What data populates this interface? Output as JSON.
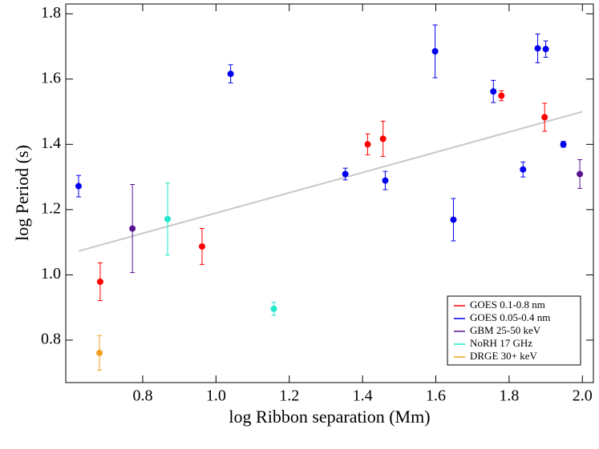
{
  "chart_data": {
    "type": "scatter",
    "xlabel": "log Ribbon separation (Mm)",
    "ylabel": "log Period (s)",
    "xlim": [
      0.59,
      2.03
    ],
    "ylim": [
      0.67,
      1.83
    ],
    "xticks": [
      0.8,
      {
        "value": 1,
        "label": "1.0"
      },
      1.2,
      1.4,
      1.6,
      1.8,
      {
        "value": 2,
        "label": "2.0"
      }
    ],
    "yticks": [
      0.8,
      {
        "value": 1,
        "label": "1.0"
      },
      1.2,
      1.4,
      1.6,
      1.8
    ],
    "legend_position": "lower right",
    "series": [
      {
        "name": "GOES 0.1-0.8 nm",
        "color": "#ff0000",
        "x": [
          0.684,
          0.962,
          1.414,
          1.456,
          1.779,
          1.897
        ],
        "values": [
          0.979,
          1.087,
          1.4,
          1.417,
          1.549,
          1.483
        ],
        "errors": [
          0.058,
          0.055,
          0.032,
          0.054,
          0.015,
          0.043
        ]
      },
      {
        "name": "GOES 0.05-0.4 nm",
        "color": "#0000ee",
        "x": [
          0.625,
          1.04,
          1.353,
          1.462,
          1.598,
          1.648,
          1.757,
          1.838,
          1.878,
          1.9,
          1.948
        ],
        "values": [
          1.272,
          1.616,
          1.309,
          1.289,
          1.685,
          1.169,
          1.562,
          1.323,
          1.694,
          1.692,
          1.4
        ],
        "errors": [
          0.033,
          0.028,
          0.018,
          0.028,
          0.081,
          0.065,
          0.034,
          0.023,
          0.044,
          0.025,
          0.009
        ]
      },
      {
        "name": "GBM 25-50 keV",
        "color": "#5a1490",
        "x": [
          0.772,
          1.993
        ],
        "values": [
          1.142,
          1.309
        ],
        "errors": [
          0.135,
          0.044
        ]
      },
      {
        "name": "NoRH 17 GHz",
        "color": "#20e8c8",
        "x": [
          0.868,
          1.158
        ],
        "values": [
          1.171,
          0.896
        ],
        "errors": [
          0.11,
          0.02
        ]
      },
      {
        "name": "DRGE 30+ keV",
        "color": "#f0a020",
        "x": [
          0.682
        ],
        "values": [
          0.761
        ],
        "errors": [
          0.053
        ]
      }
    ],
    "fit": {
      "color": "#c8c8c8",
      "x": [
        0.625,
        2.0
      ],
      "values": [
        1.073,
        1.5
      ]
    }
  }
}
